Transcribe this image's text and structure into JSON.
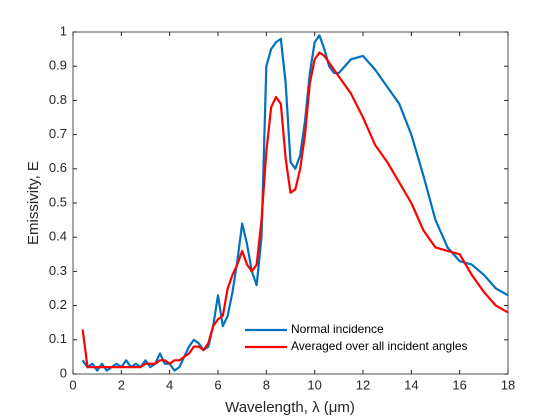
{
  "chart_data": {
    "type": "line",
    "xlabel": "Wavelength, λ (μm)",
    "ylabel": "Emissivity, E",
    "x": [
      0.4,
      0.6,
      0.8,
      1.0,
      1.2,
      1.4,
      1.6,
      1.8,
      2.0,
      2.2,
      2.4,
      2.6,
      2.8,
      3.0,
      3.2,
      3.4,
      3.6,
      3.8,
      4.0,
      4.2,
      4.4,
      4.6,
      4.8,
      5.0,
      5.2,
      5.4,
      5.6,
      5.8,
      6.0,
      6.2,
      6.4,
      6.6,
      6.8,
      7.0,
      7.2,
      7.4,
      7.6,
      7.8,
      8.0,
      8.2,
      8.4,
      8.6,
      8.8,
      9.0,
      9.2,
      9.4,
      9.6,
      9.8,
      10.0,
      10.2,
      10.4,
      10.6,
      10.8,
      11.0,
      11.5,
      12.0,
      12.5,
      13.0,
      13.5,
      14.0,
      14.5,
      15.0,
      15.5,
      16.0,
      16.5,
      17.0,
      17.5,
      18.0
    ],
    "series": [
      {
        "name": "Normal incidence",
        "color": "#0072bd",
        "values": [
          0.04,
          0.02,
          0.03,
          0.01,
          0.03,
          0.01,
          0.02,
          0.03,
          0.02,
          0.04,
          0.02,
          0.03,
          0.02,
          0.04,
          0.02,
          0.03,
          0.06,
          0.03,
          0.03,
          0.01,
          0.02,
          0.05,
          0.08,
          0.1,
          0.09,
          0.07,
          0.08,
          0.14,
          0.23,
          0.14,
          0.17,
          0.24,
          0.33,
          0.44,
          0.38,
          0.3,
          0.26,
          0.4,
          0.9,
          0.95,
          0.97,
          0.98,
          0.85,
          0.62,
          0.6,
          0.64,
          0.74,
          0.88,
          0.97,
          0.99,
          0.95,
          0.9,
          0.88,
          0.88,
          0.92,
          0.93,
          0.89,
          0.84,
          0.79,
          0.7,
          0.58,
          0.45,
          0.37,
          0.33,
          0.32,
          0.29,
          0.25,
          0.23
        ]
      },
      {
        "name": "Averaged over all incident angles",
        "color": "#ff0000",
        "values": [
          0.13,
          0.02,
          0.02,
          0.02,
          0.02,
          0.02,
          0.02,
          0.02,
          0.02,
          0.02,
          0.02,
          0.02,
          0.02,
          0.03,
          0.03,
          0.03,
          0.04,
          0.04,
          0.03,
          0.04,
          0.04,
          0.05,
          0.06,
          0.08,
          0.08,
          0.07,
          0.09,
          0.14,
          0.16,
          0.17,
          0.25,
          0.29,
          0.32,
          0.36,
          0.32,
          0.3,
          0.32,
          0.45,
          0.65,
          0.78,
          0.81,
          0.79,
          0.63,
          0.53,
          0.54,
          0.6,
          0.7,
          0.85,
          0.92,
          0.94,
          0.93,
          0.91,
          0.89,
          0.87,
          0.82,
          0.75,
          0.67,
          0.62,
          0.56,
          0.5,
          0.42,
          0.37,
          0.36,
          0.35,
          0.29,
          0.24,
          0.2,
          0.18
        ]
      }
    ],
    "xlim": [
      0,
      18
    ],
    "xticks": [
      0,
      2,
      4,
      6,
      8,
      10,
      12,
      14,
      16,
      18
    ],
    "ylim": [
      0,
      1
    ],
    "yticks": [
      0,
      0.1,
      0.2,
      0.3,
      0.4,
      0.5,
      0.6,
      0.7,
      0.8,
      0.9,
      1
    ],
    "legend": "southeast"
  }
}
